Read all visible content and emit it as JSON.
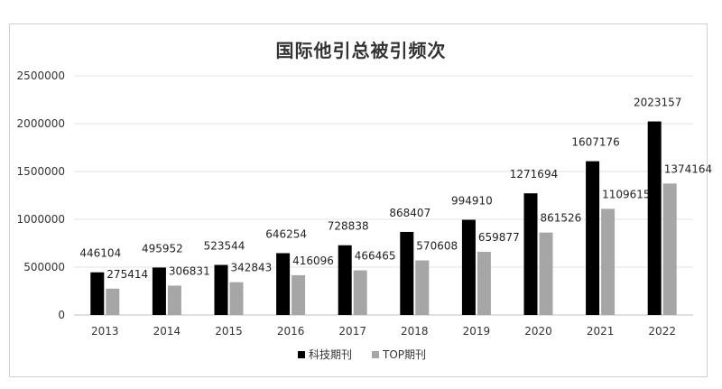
{
  "chart_data": {
    "type": "bar",
    "title": "国际他引总被引频次",
    "categories": [
      "2013",
      "2014",
      "2015",
      "2016",
      "2017",
      "2018",
      "2019",
      "2020",
      "2021",
      "2022"
    ],
    "series": [
      {
        "name": "科技期刊",
        "color": "#000000",
        "values": [
          446104,
          495952,
          523544,
          646254,
          728838,
          868407,
          994910,
          1271694,
          1607176,
          2023157
        ]
      },
      {
        "name": "TOP期刊",
        "color": "#a6a6a6",
        "values": [
          275414,
          306831,
          342843,
          416096,
          466465,
          570608,
          659877,
          861526,
          1109615,
          1374164
        ]
      }
    ],
    "y_ticks": [
      "0",
      "500000",
      "1000000",
      "1500000",
      "2000000",
      "2500000"
    ],
    "ylim": [
      0,
      2500000
    ],
    "grid": true,
    "legend_position": "bottom"
  }
}
